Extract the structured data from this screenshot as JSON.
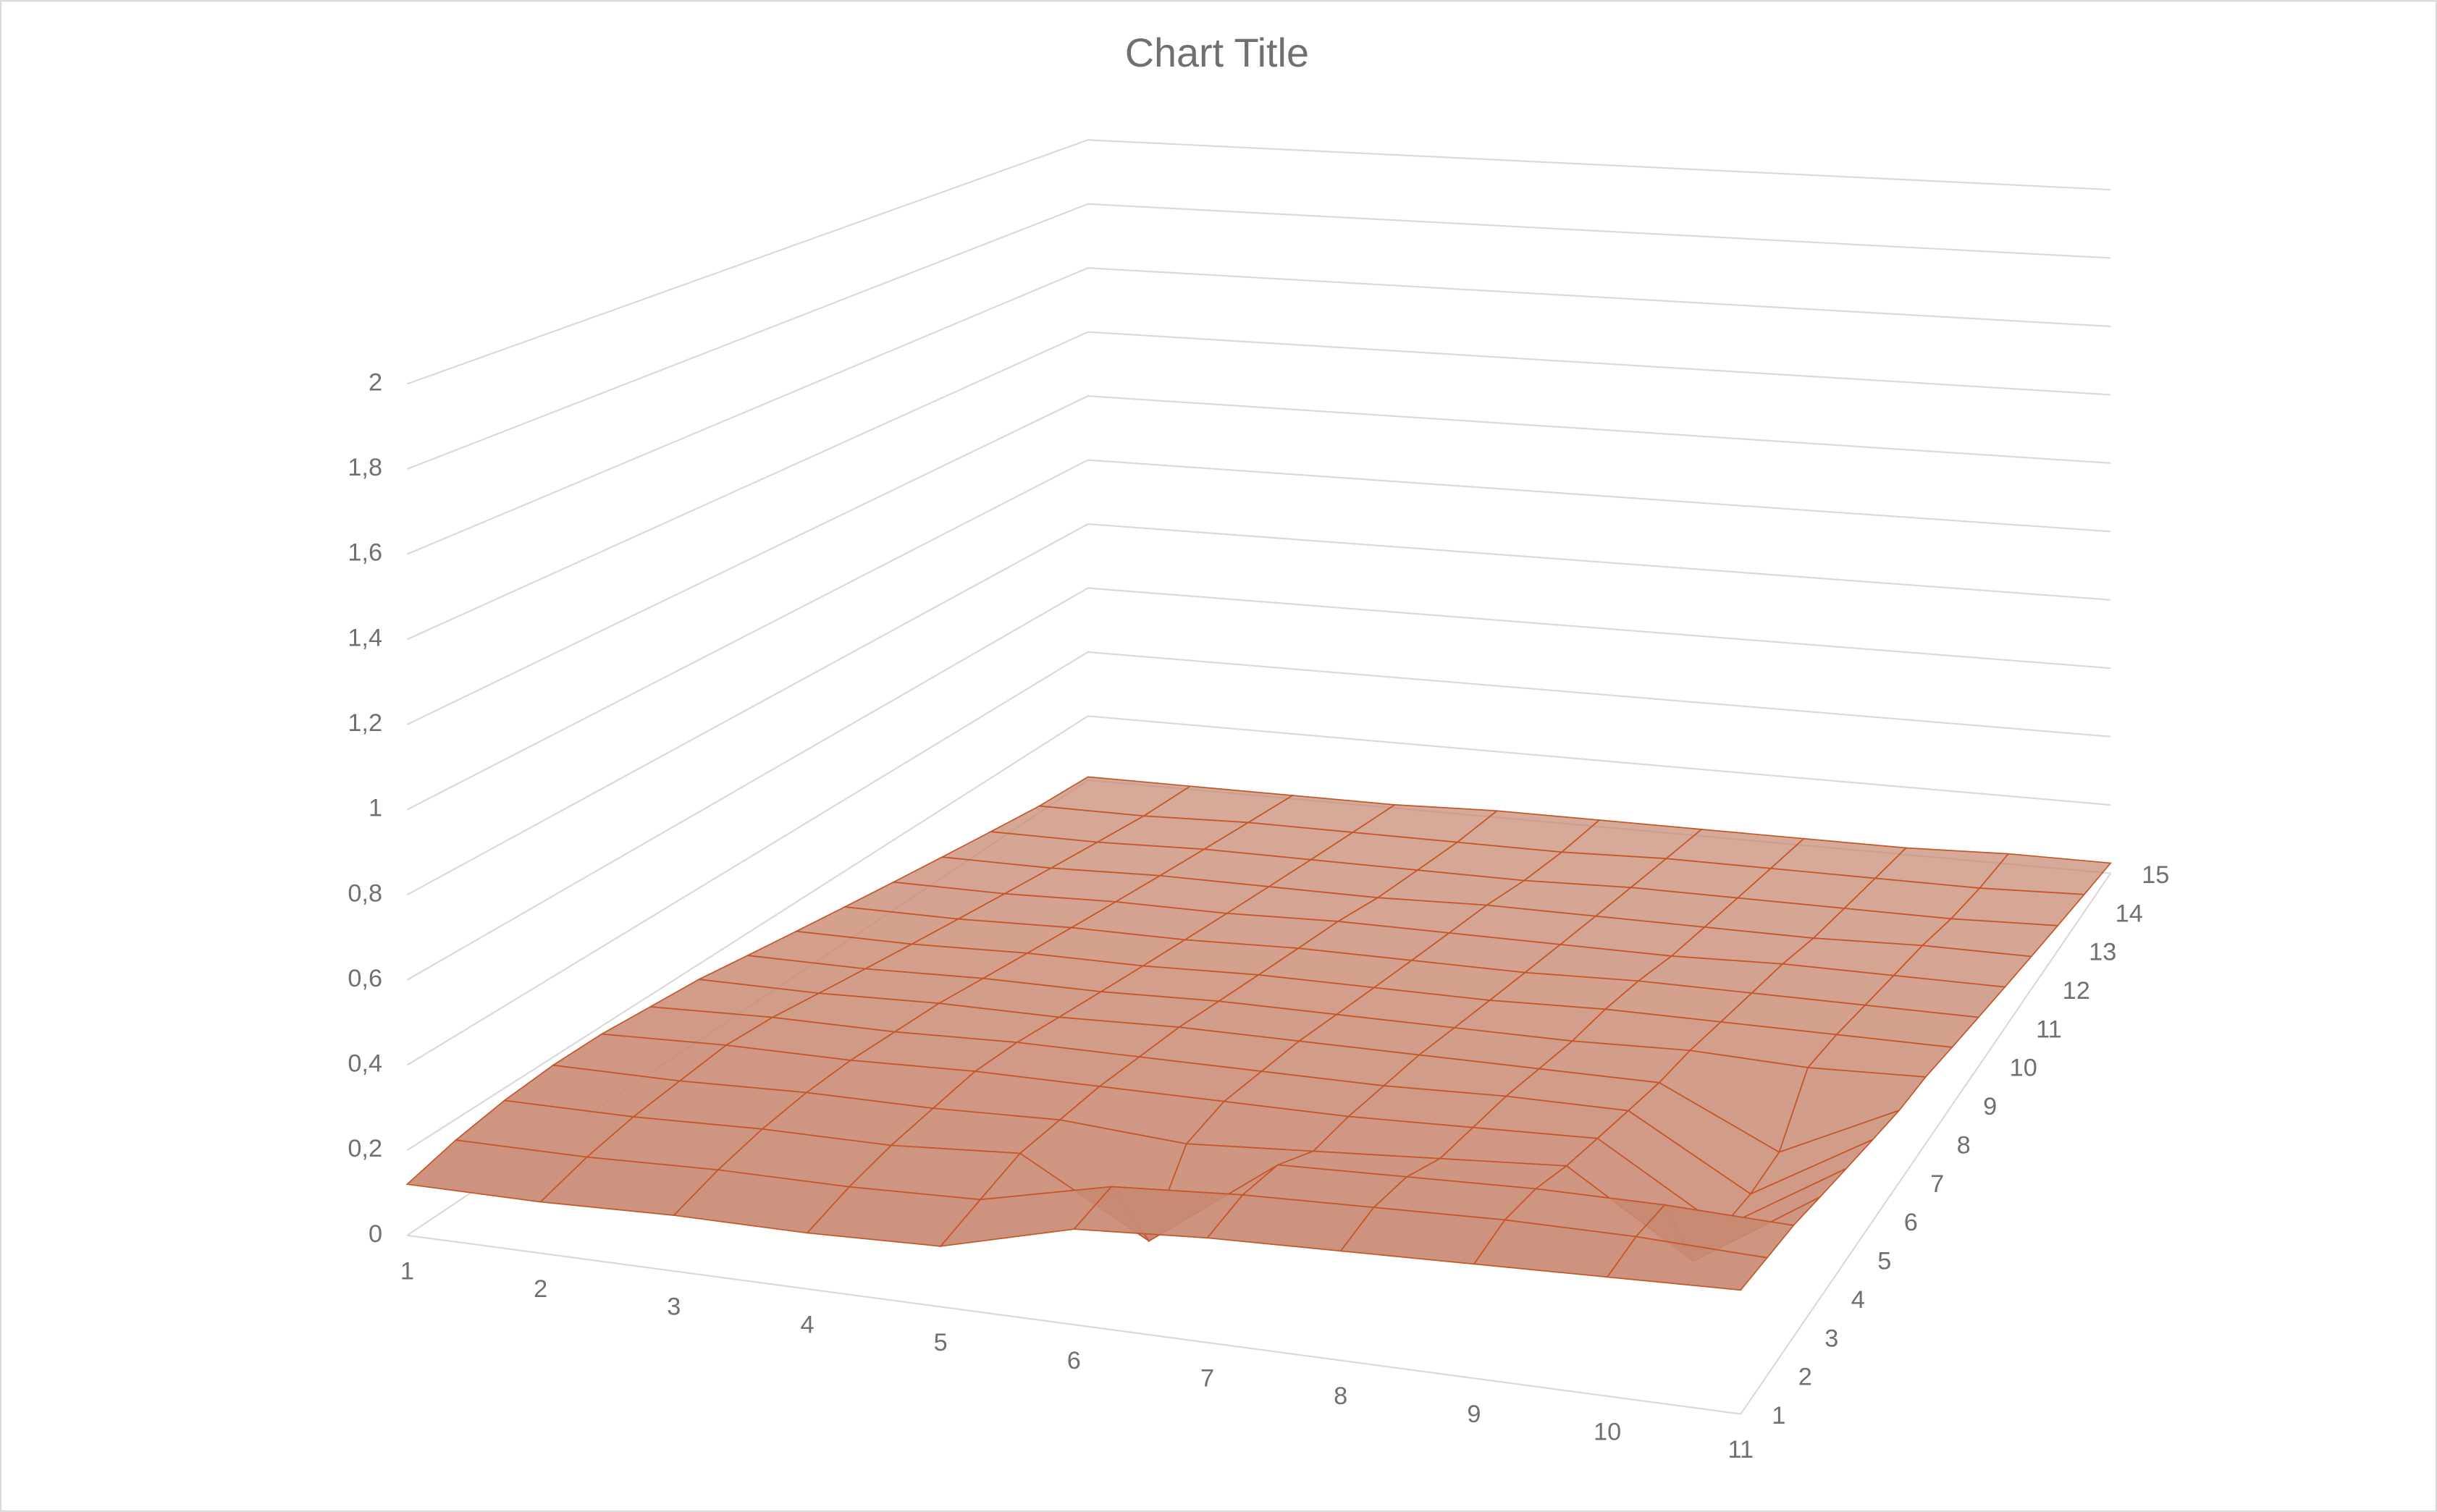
{
  "chart_data": {
    "type": "surface",
    "title": "Chart Title",
    "categories": [
      "1",
      "2",
      "3",
      "4",
      "5",
      "6",
      "7",
      "8",
      "9",
      "10",
      "11"
    ],
    "color": "#c98a73",
    "line_color": "#c4572a",
    "grid": true,
    "zlim": [
      0,
      2
    ],
    "zticks": [
      0,
      {
        "value": 0.2,
        "label": "0,2"
      },
      {
        "value": 0.4,
        "label": "0,4"
      },
      {
        "value": 0.6,
        "label": "0,6"
      },
      {
        "value": 0.8,
        "label": "0,8"
      },
      1,
      {
        "value": 1.2,
        "label": "1,2"
      },
      {
        "value": 1.4,
        "label": "1,4"
      },
      {
        "value": 1.6,
        "label": "1,6"
      },
      {
        "value": 1.8,
        "label": "1,8"
      },
      2
    ],
    "series": [
      {
        "name": "1",
        "values": [
          0.12,
          0.12,
          0.13,
          0.13,
          0.14,
          0.22,
          0.24,
          0.25,
          0.26,
          0.27,
          0.28
        ]
      },
      {
        "name": "2",
        "values": [
          0.15,
          0.15,
          0.16,
          0.16,
          0.17,
          0.24,
          0.26,
          0.27,
          0.28,
          0.28,
          0.27
        ]
      },
      {
        "name": "3",
        "values": [
          0.17,
          0.17,
          0.18,
          0.18,
          0.2,
          0.03,
          0.25,
          0.26,
          0.27,
          0.27,
          0.26
        ]
      },
      {
        "name": "4",
        "values": [
          0.18,
          0.18,
          0.19,
          0.19,
          0.2,
          0.18,
          0.2,
          0.22,
          0.24,
          0.05,
          0.24
        ]
      },
      {
        "name": "5",
        "values": [
          0.18,
          0.19,
          0.19,
          0.2,
          0.2,
          0.2,
          0.2,
          0.21,
          0.22,
          0.04,
          0.22
        ]
      },
      {
        "name": "6",
        "values": [
          0.17,
          0.18,
          0.18,
          0.19,
          0.19,
          0.19,
          0.19,
          0.2,
          0.2,
          0.03,
          0.2
        ]
      },
      {
        "name": "7",
        "values": [
          0.16,
          0.16,
          0.17,
          0.17,
          0.18,
          0.18,
          0.18,
          0.18,
          0.18,
          0.04,
          0.18
        ]
      },
      {
        "name": "8",
        "values": [
          0.14,
          0.14,
          0.15,
          0.15,
          0.16,
          0.16,
          0.16,
          0.16,
          0.17,
          0.16,
          0.17
        ]
      },
      {
        "name": "9",
        "values": [
          0.12,
          0.12,
          0.13,
          0.13,
          0.14,
          0.14,
          0.14,
          0.15,
          0.15,
          0.15,
          0.15
        ]
      },
      {
        "name": "10",
        "values": [
          0.1,
          0.1,
          0.11,
          0.11,
          0.12,
          0.12,
          0.12,
          0.13,
          0.13,
          0.13,
          0.13
        ]
      },
      {
        "name": "11",
        "values": [
          0.08,
          0.08,
          0.09,
          0.09,
          0.1,
          0.1,
          0.1,
          0.1,
          0.11,
          0.11,
          0.11
        ]
      },
      {
        "name": "12",
        "values": [
          0.06,
          0.06,
          0.07,
          0.07,
          0.07,
          0.08,
          0.08,
          0.08,
          0.08,
          0.09,
          0.09
        ]
      },
      {
        "name": "13",
        "values": [
          0.04,
          0.04,
          0.05,
          0.05,
          0.05,
          0.05,
          0.06,
          0.06,
          0.06,
          0.06,
          0.07
        ]
      },
      {
        "name": "14",
        "values": [
          0.02,
          0.02,
          0.03,
          0.03,
          0.03,
          0.03,
          0.04,
          0.04,
          0.04,
          0.04,
          0.05
        ]
      },
      {
        "name": "15",
        "values": [
          0.01,
          0.01,
          0.01,
          0.01,
          0.02,
          0.02,
          0.02,
          0.02,
          0.02,
          0.03,
          0.03
        ]
      }
    ]
  }
}
